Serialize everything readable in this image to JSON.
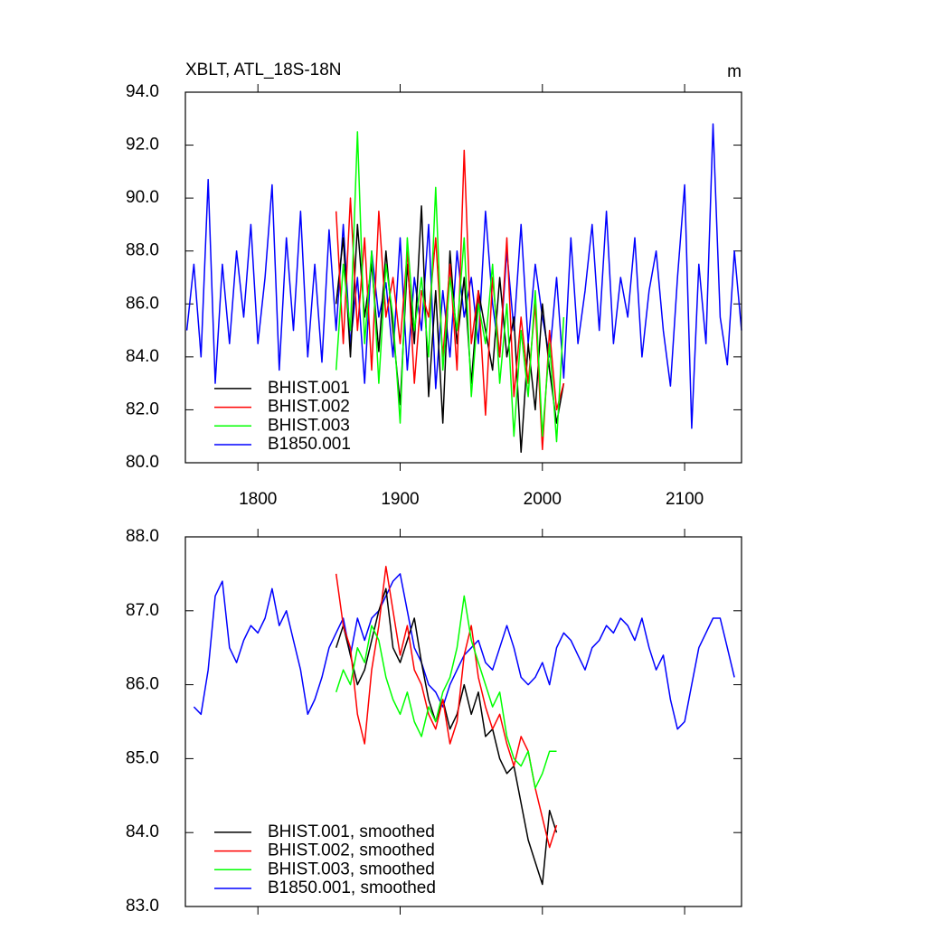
{
  "chart_data": [
    {
      "type": "line",
      "title": "XBLT, ATL_18S-18N",
      "right_title": "m",
      "xlim": [
        1749,
        2140
      ],
      "xticks": [
        1800,
        1900,
        2000,
        2100
      ],
      "ylim": [
        80,
        94
      ],
      "yticks": [
        {
          "value": 80,
          "label": "80.0"
        },
        {
          "value": 82,
          "label": "82.0"
        },
        {
          "value": 84,
          "label": "84.0"
        },
        {
          "value": 86,
          "label": "86.0"
        },
        {
          "value": 88,
          "label": "88.0"
        },
        {
          "value": 90,
          "label": "90.0"
        },
        {
          "value": 92,
          "label": "92.0"
        },
        {
          "value": 94,
          "label": "94.0"
        }
      ],
      "legend": "lower left",
      "series": [
        {
          "name": "B1850.001",
          "color": "#0000ff",
          "x": [
            1750,
            1755,
            1760,
            1765,
            1770,
            1775,
            1780,
            1785,
            1790,
            1795,
            1800,
            1805,
            1810,
            1815,
            1820,
            1825,
            1830,
            1835,
            1840,
            1845,
            1850,
            1855,
            1860,
            1865,
            1870,
            1875,
            1880,
            1885,
            1890,
            1895,
            1900,
            1905,
            1910,
            1915,
            1920,
            1925,
            1930,
            1935,
            1940,
            1945,
            1950,
            1955,
            1960,
            1965,
            1970,
            1975,
            1980,
            1985,
            1990,
            1995,
            2000,
            2005,
            2010,
            2015,
            2020,
            2025,
            2030,
            2035,
            2040,
            2045,
            2050,
            2055,
            2060,
            2065,
            2070,
            2075,
            2080,
            2085,
            2090,
            2095,
            2100,
            2105,
            2110,
            2115,
            2120,
            2125,
            2130,
            2135,
            2140
          ],
          "values": [
            85.0,
            87.5,
            84.0,
            90.7,
            83.0,
            87.5,
            84.5,
            88.0,
            85.5,
            89.0,
            84.5,
            87.0,
            90.5,
            83.5,
            88.5,
            85.0,
            89.5,
            84.0,
            87.5,
            83.8,
            88.8,
            85.0,
            89.0,
            84.5,
            87.0,
            83.0,
            88.0,
            85.5,
            86.8,
            84.0,
            88.5,
            83.5,
            87.0,
            85.0,
            89.0,
            82.8,
            86.5,
            84.0,
            88.0,
            85.5,
            87.0,
            84.5,
            89.5,
            86.0,
            84.0,
            88.0,
            85.0,
            89.0,
            84.5,
            87.5,
            85.5,
            84.0,
            87.0,
            83.2,
            88.5,
            84.5,
            86.5,
            89.0,
            85.0,
            89.5,
            84.5,
            87.0,
            85.5,
            88.5,
            84.0,
            86.5,
            88.0,
            85.0,
            82.9,
            87.0,
            90.5,
            81.3,
            87.5,
            84.5,
            92.8,
            85.5,
            83.7,
            88.0,
            85.0
          ]
        },
        {
          "name": "BHIST.001",
          "color": "#000000",
          "x": [
            1855,
            1860,
            1865,
            1870,
            1875,
            1880,
            1885,
            1890,
            1895,
            1900,
            1905,
            1910,
            1915,
            1920,
            1925,
            1930,
            1935,
            1940,
            1945,
            1950,
            1955,
            1960,
            1965,
            1970,
            1975,
            1980,
            1985,
            1990,
            1995,
            2000,
            2005,
            2010,
            2015
          ],
          "values": [
            86.0,
            88.5,
            84.0,
            89.0,
            85.5,
            87.5,
            84.2,
            88.0,
            85.0,
            82.2,
            87.5,
            84.5,
            89.7,
            82.5,
            86.5,
            81.5,
            88.0,
            84.5,
            87.0,
            83.0,
            86.5,
            85.0,
            83.5,
            87.0,
            84.0,
            85.5,
            80.4,
            84.5,
            82.0,
            86.0,
            83.5,
            81.5,
            83.0
          ]
        },
        {
          "name": "BHIST.002",
          "color": "#ff0000",
          "x": [
            1855,
            1860,
            1865,
            1870,
            1875,
            1880,
            1885,
            1890,
            1895,
            1900,
            1905,
            1910,
            1915,
            1920,
            1925,
            1930,
            1935,
            1940,
            1945,
            1950,
            1955,
            1960,
            1965,
            1970,
            1975,
            1980,
            1985,
            1990,
            1995,
            2000,
            2005,
            2010,
            2015
          ],
          "values": [
            89.5,
            84.5,
            90.0,
            85.0,
            88.5,
            83.5,
            89.5,
            85.5,
            87.0,
            84.5,
            88.0,
            83.0,
            86.5,
            85.5,
            88.5,
            84.0,
            87.5,
            83.5,
            91.8,
            84.5,
            86.5,
            81.8,
            87.0,
            84.0,
            88.5,
            82.5,
            85.5,
            83.0,
            86.0,
            80.5,
            85.0,
            82.0,
            83.0
          ]
        },
        {
          "name": "BHIST.003",
          "color": "#00ff00",
          "x": [
            1855,
            1860,
            1865,
            1870,
            1875,
            1880,
            1885,
            1890,
            1895,
            1900,
            1905,
            1910,
            1915,
            1920,
            1925,
            1930,
            1935,
            1940,
            1945,
            1950,
            1955,
            1960,
            1965,
            1970,
            1975,
            1980,
            1985,
            1990,
            1995,
            2000,
            2005,
            2010,
            2015
          ],
          "values": [
            83.5,
            87.5,
            85.0,
            92.5,
            84.5,
            88.0,
            83.0,
            87.5,
            85.5,
            81.5,
            88.5,
            85.0,
            87.0,
            84.0,
            90.4,
            83.5,
            87.0,
            85.0,
            88.5,
            82.5,
            86.0,
            84.5,
            87.5,
            83.0,
            86.0,
            81.0,
            85.0,
            82.5,
            86.5,
            81.0,
            84.5,
            80.8,
            85.5
          ]
        }
      ],
      "legend_order": [
        1,
        2,
        3,
        0
      ]
    },
    {
      "type": "line",
      "xlim": [
        1749,
        2140
      ],
      "xticks": [
        1800,
        1900,
        2000,
        2100
      ],
      "ylim": [
        83,
        88
      ],
      "yticks": [
        {
          "value": 83,
          "label": "83.0"
        },
        {
          "value": 84,
          "label": "84.0"
        },
        {
          "value": 85,
          "label": "85.0"
        },
        {
          "value": 86,
          "label": "86.0"
        },
        {
          "value": 87,
          "label": "87.0"
        },
        {
          "value": 88,
          "label": "88.0"
        }
      ],
      "legend": "lower left",
      "series": [
        {
          "name": "B1850.001, smoothed",
          "color": "#0000ff",
          "x": [
            1755,
            1760,
            1765,
            1770,
            1775,
            1780,
            1785,
            1790,
            1795,
            1800,
            1805,
            1810,
            1815,
            1820,
            1825,
            1830,
            1835,
            1840,
            1845,
            1850,
            1855,
            1860,
            1865,
            1870,
            1875,
            1880,
            1885,
            1890,
            1895,
            1900,
            1905,
            1910,
            1915,
            1920,
            1925,
            1930,
            1935,
            1940,
            1945,
            1950,
            1955,
            1960,
            1965,
            1970,
            1975,
            1980,
            1985,
            1990,
            1995,
            2000,
            2005,
            2010,
            2015,
            2020,
            2025,
            2030,
            2035,
            2040,
            2045,
            2050,
            2055,
            2060,
            2065,
            2070,
            2075,
            2080,
            2085,
            2090,
            2095,
            2100,
            2105,
            2110,
            2115,
            2120,
            2125,
            2130,
            2135
          ],
          "values": [
            85.7,
            85.6,
            86.2,
            87.2,
            87.4,
            86.5,
            86.3,
            86.6,
            86.8,
            86.7,
            86.9,
            87.3,
            86.8,
            87.0,
            86.6,
            86.2,
            85.6,
            85.8,
            86.1,
            86.5,
            86.7,
            86.9,
            86.4,
            86.9,
            86.6,
            86.9,
            87.0,
            87.2,
            87.4,
            87.5,
            87.0,
            86.5,
            86.3,
            86.0,
            85.9,
            85.7,
            86.0,
            86.2,
            86.4,
            86.5,
            86.6,
            86.3,
            86.2,
            86.5,
            86.8,
            86.5,
            86.1,
            86.0,
            86.1,
            86.3,
            86.0,
            86.5,
            86.7,
            86.6,
            86.4,
            86.2,
            86.5,
            86.6,
            86.8,
            86.7,
            86.9,
            86.8,
            86.6,
            86.9,
            86.5,
            86.2,
            86.4,
            85.8,
            85.4,
            85.5,
            86.0,
            86.5,
            86.7,
            86.9,
            86.9,
            86.5,
            86.1
          ]
        },
        {
          "name": "BHIST.001, smoothed",
          "color": "#000000",
          "x": [
            1855,
            1860,
            1865,
            1870,
            1875,
            1880,
            1885,
            1890,
            1895,
            1900,
            1905,
            1910,
            1915,
            1920,
            1925,
            1930,
            1935,
            1940,
            1945,
            1950,
            1955,
            1960,
            1965,
            1970,
            1975,
            1980,
            1985,
            1990,
            1995,
            2000,
            2005,
            2010
          ],
          "values": [
            86.5,
            86.8,
            86.4,
            86.0,
            86.2,
            86.6,
            87.0,
            87.3,
            86.5,
            86.3,
            86.6,
            86.9,
            86.3,
            85.8,
            85.5,
            85.8,
            85.4,
            85.6,
            86.0,
            85.6,
            85.9,
            85.3,
            85.4,
            85.0,
            84.8,
            84.9,
            84.4,
            83.9,
            83.6,
            83.3,
            84.3,
            84.0
          ]
        },
        {
          "name": "BHIST.002, smoothed",
          "color": "#ff0000",
          "x": [
            1855,
            1860,
            1865,
            1870,
            1875,
            1880,
            1885,
            1890,
            1895,
            1900,
            1905,
            1910,
            1915,
            1920,
            1925,
            1930,
            1935,
            1940,
            1945,
            1950,
            1955,
            1960,
            1965,
            1970,
            1975,
            1980,
            1985,
            1990,
            1995,
            2000,
            2005,
            2010
          ],
          "values": [
            87.5,
            86.8,
            86.5,
            85.6,
            85.2,
            86.2,
            86.8,
            87.6,
            87.0,
            86.4,
            86.8,
            86.2,
            86.0,
            85.6,
            85.4,
            85.8,
            85.2,
            85.5,
            86.4,
            86.8,
            86.1,
            85.7,
            85.4,
            85.6,
            85.2,
            84.9,
            85.3,
            85.1,
            84.6,
            84.2,
            83.8,
            84.1
          ]
        },
        {
          "name": "BHIST.003, smoothed",
          "color": "#00ff00",
          "x": [
            1855,
            1860,
            1865,
            1870,
            1875,
            1880,
            1885,
            1890,
            1895,
            1900,
            1905,
            1910,
            1915,
            1920,
            1925,
            1930,
            1935,
            1940,
            1945,
            1950,
            1955,
            1960,
            1965,
            1970,
            1975,
            1980,
            1985,
            1990,
            1995,
            2000,
            2005,
            2010
          ],
          "values": [
            85.9,
            86.2,
            86.0,
            86.5,
            86.3,
            86.8,
            86.6,
            86.1,
            85.8,
            85.6,
            85.9,
            85.5,
            85.3,
            85.7,
            85.5,
            85.9,
            86.1,
            86.5,
            87.2,
            86.6,
            86.3,
            86.0,
            85.7,
            85.9,
            85.3,
            85.0,
            84.9,
            85.1,
            84.6,
            84.8,
            85.1,
            85.1
          ]
        }
      ],
      "legend_order": [
        1,
        2,
        3,
        0
      ]
    }
  ]
}
